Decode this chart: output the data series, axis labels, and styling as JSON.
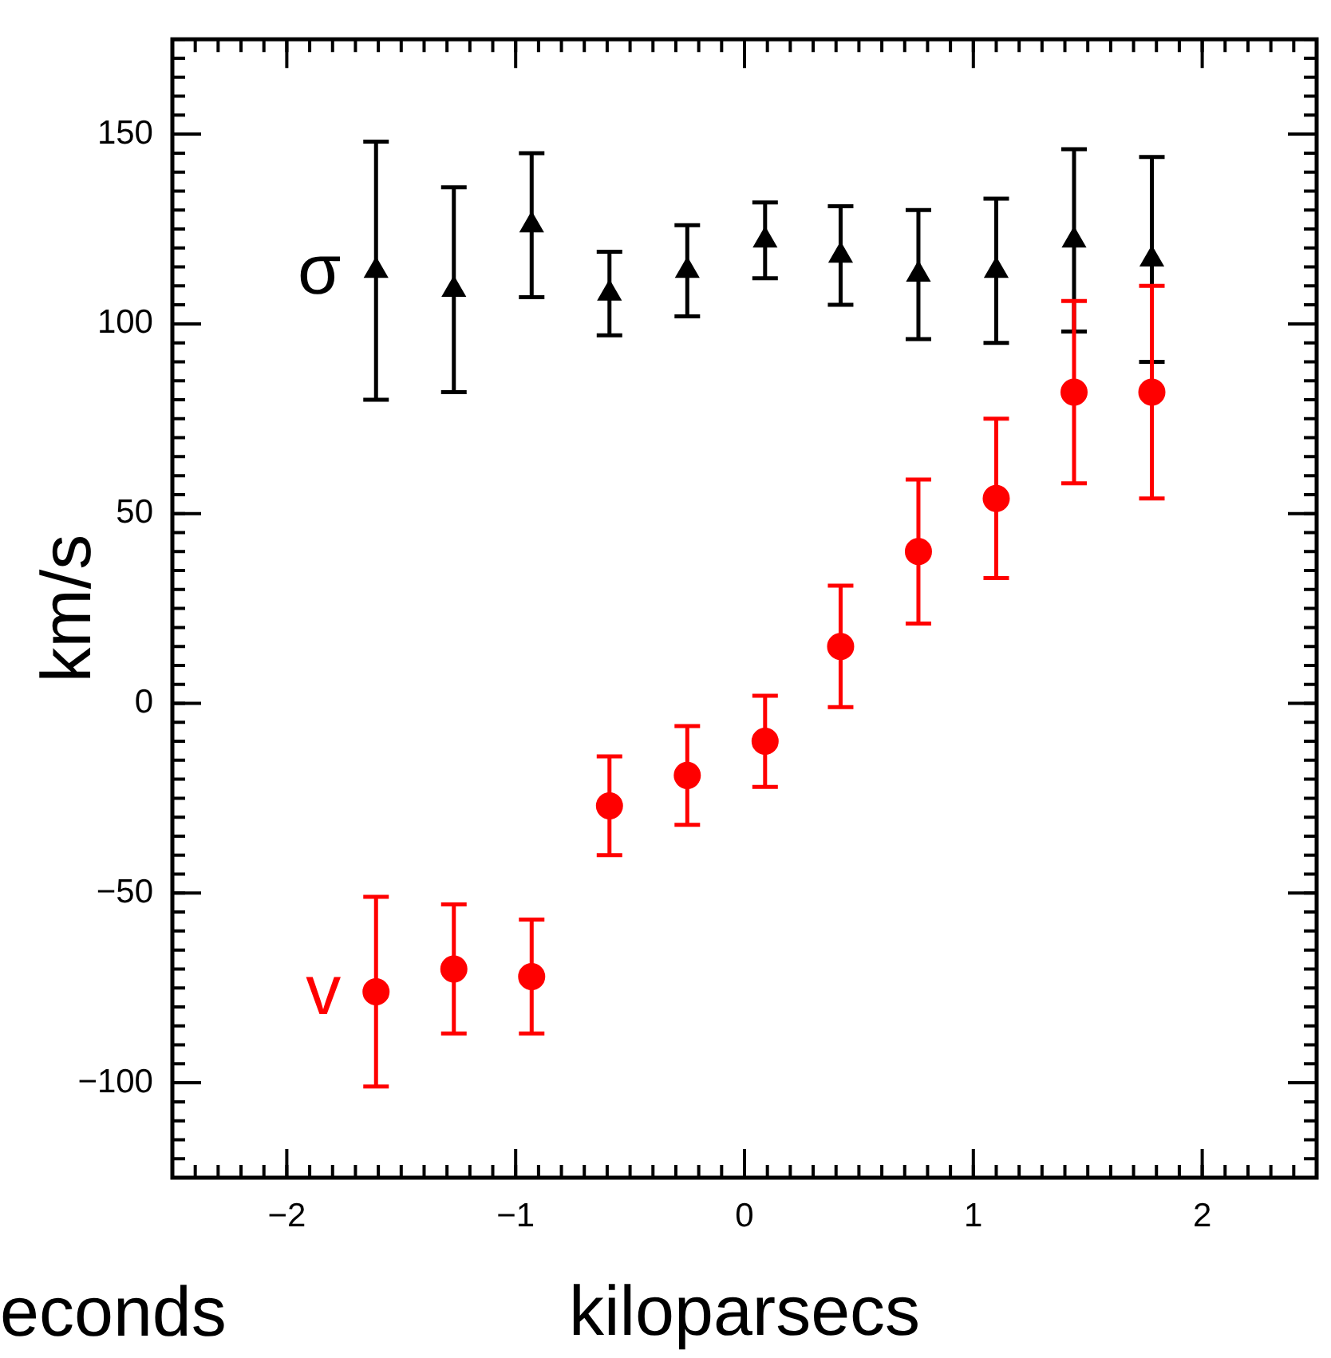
{
  "chart_data": {
    "type": "scatter",
    "xlabel": "kiloparsecs",
    "ylabel": "km/s",
    "x": [
      -1.61,
      -1.27,
      -0.93,
      -0.59,
      -0.25,
      0.09,
      0.42,
      0.76,
      1.1,
      1.44,
      1.78
    ],
    "series": [
      {
        "name": "σ",
        "color": "#000000",
        "marker": "triangle",
        "values": [
          114,
          109,
          126,
          108,
          114,
          122,
          118,
          113,
          114,
          122,
          117
        ],
        "errors": [
          34,
          27,
          19,
          11,
          12,
          10,
          13,
          17,
          19,
          24,
          27
        ]
      },
      {
        "name": "v",
        "color": "#ff0000",
        "marker": "circle",
        "values": [
          -76,
          -70,
          -72,
          -27,
          -19,
          -10,
          15,
          40,
          54,
          82,
          82
        ],
        "errors": [
          25,
          17,
          15,
          13,
          13,
          12,
          16,
          19,
          21,
          24,
          28
        ]
      }
    ],
    "xlim": [
      -2.5,
      2.5
    ],
    "xticks": [
      {
        "value": -2,
        "label": "−2"
      },
      {
        "value": -1,
        "label": "−1"
      },
      0,
      1,
      2
    ],
    "ylim": [
      -125,
      175
    ],
    "yticks": [
      {
        "value": -100,
        "label": "−100"
      },
      {
        "value": -50,
        "label": "−50"
      },
      0,
      50,
      100,
      150
    ],
    "grid": false,
    "legend": false,
    "annotations": [
      "econds"
    ]
  }
}
